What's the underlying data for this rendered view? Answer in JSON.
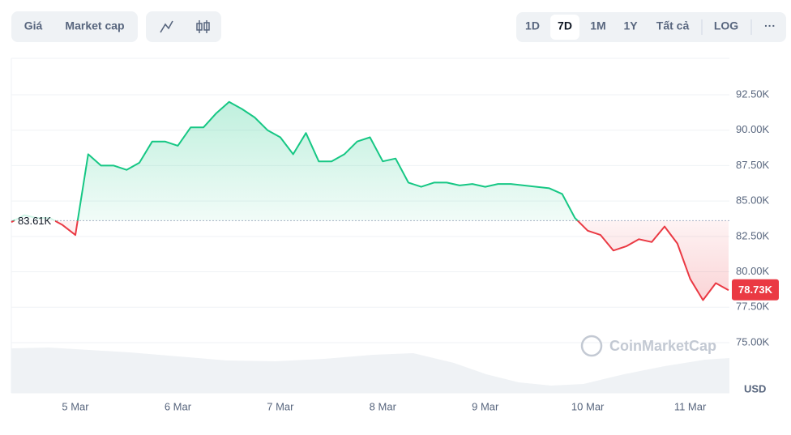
{
  "toolbar": {
    "metric_tabs": [
      "Giá",
      "Market cap"
    ],
    "range_tabs": [
      "1D",
      "7D",
      "1M",
      "1Y",
      "Tất cả"
    ],
    "selected_range": 1,
    "log_button": "LOG",
    "more_button": "···"
  },
  "chart_data": {
    "type": "line",
    "categories": [
      null,
      null,
      null,
      null,
      null,
      "5 Mar",
      null,
      null,
      null,
      null,
      null,
      null,
      null,
      "6 Mar",
      null,
      null,
      null,
      null,
      null,
      null,
      null,
      "7 Mar",
      null,
      null,
      null,
      null,
      null,
      null,
      null,
      "8 Mar",
      null,
      null,
      null,
      null,
      null,
      null,
      null,
      "9 Mar",
      null,
      null,
      null,
      null,
      null,
      null,
      null,
      "10 Mar",
      null,
      null,
      null,
      null,
      null,
      null,
      null,
      "11 Mar",
      null,
      null,
      null
    ],
    "values": [
      83500,
      84000,
      83800,
      83800,
      83300,
      82600,
      88300,
      87500,
      87500,
      87200,
      87700,
      89200,
      89200,
      88900,
      90200,
      90200,
      91200,
      92000,
      91500,
      90900,
      90000,
      89500,
      88300,
      89800,
      87800,
      87800,
      88300,
      89200,
      89500,
      87800,
      88000,
      86300,
      86000,
      86300,
      86300,
      86100,
      86200,
      86000,
      86200,
      86200,
      86100,
      86000,
      85900,
      85500,
      83800,
      82900,
      82600,
      81500,
      81800,
      82300,
      82100,
      83200,
      82000,
      79500,
      78000,
      79200,
      78700
    ],
    "up_color": "#16c784",
    "down_color": "#ea3943",
    "baseline": {
      "value": 83610,
      "label": "83.61K"
    },
    "current_price": {
      "value": 78730,
      "label": "78.73K"
    },
    "ylim": [
      71450,
      95075
    ],
    "yticks": [
      {
        "value": 75000,
        "label": "75.00K"
      },
      {
        "value": 77500,
        "label": "77.50K"
      },
      {
        "value": 80000,
        "label": "80.00K"
      },
      {
        "value": 82500,
        "label": "82.50K"
      },
      {
        "value": 85000,
        "label": "85.00K"
      },
      {
        "value": 87500,
        "label": "87.50K"
      },
      {
        "value": 90000,
        "label": "90.00K"
      },
      {
        "value": 92500,
        "label": "92.50K"
      }
    ],
    "grid": true,
    "currency": "USD"
  },
  "watermark": "CoinMarketCap"
}
